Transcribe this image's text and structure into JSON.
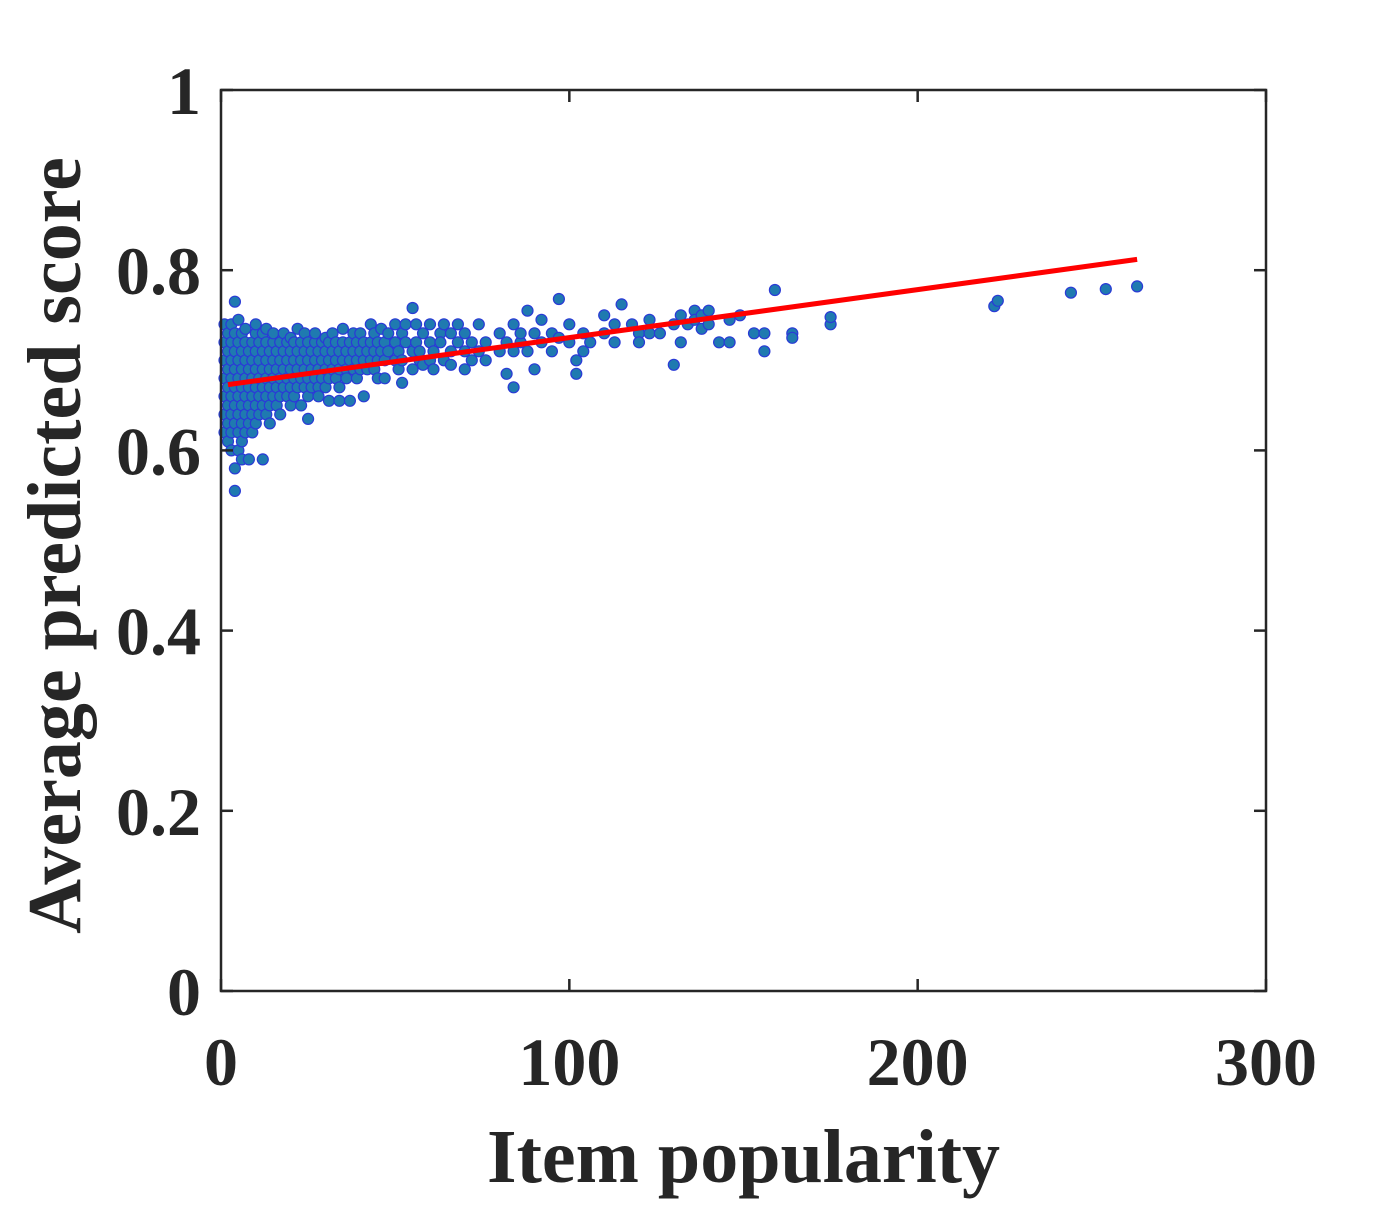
{
  "chart_data": {
    "type": "scatter",
    "title": "",
    "xlabel": "Item popularity",
    "ylabel": "Average predicted score",
    "xlim": [
      0,
      300
    ],
    "ylim": [
      0,
      1
    ],
    "xticks": [
      0,
      100,
      200,
      300
    ],
    "xtick_labels": [
      "0",
      "100",
      "200",
      "300"
    ],
    "yticks": [
      0,
      0.2,
      0.4,
      0.6,
      0.8,
      1
    ],
    "ytick_labels": [
      "0",
      "0.2",
      "0.4",
      "0.6",
      "0.8",
      "1"
    ],
    "grid": false,
    "legend": "none",
    "colors": {
      "marker_fill": "#1f7ab0",
      "marker_edge": "#2a3ad6",
      "fit_line": "#ff0000",
      "axes": "#262626"
    },
    "series": [
      {
        "kind": "points",
        "points": [
          [
            1,
            0.7
          ],
          [
            1,
            0.66
          ],
          [
            1,
            0.64
          ],
          [
            1,
            0.62
          ],
          [
            1,
            0.72
          ],
          [
            1,
            0.68
          ],
          [
            1,
            0.74
          ],
          [
            2,
            0.69
          ],
          [
            2,
            0.67
          ],
          [
            2,
            0.65
          ],
          [
            2,
            0.63
          ],
          [
            2,
            0.61
          ],
          [
            2,
            0.71
          ],
          [
            2,
            0.73
          ],
          [
            3,
            0.7
          ],
          [
            3,
            0.68
          ],
          [
            3,
            0.66
          ],
          [
            3,
            0.64
          ],
          [
            3,
            0.6
          ],
          [
            3,
            0.72
          ],
          [
            3,
            0.74
          ],
          [
            3,
            0.62
          ],
          [
            4,
            0.69
          ],
          [
            4,
            0.67
          ],
          [
            4,
            0.65
          ],
          [
            4,
            0.63
          ],
          [
            4,
            0.71
          ],
          [
            4,
            0.73
          ],
          [
            4,
            0.58
          ],
          [
            4,
            0.555
          ],
          [
            4,
            0.765
          ],
          [
            5,
            0.7
          ],
          [
            5,
            0.68
          ],
          [
            5,
            0.66
          ],
          [
            5,
            0.64
          ],
          [
            5,
            0.62
          ],
          [
            5,
            0.72
          ],
          [
            5,
            0.6
          ],
          [
            5,
            0.745
          ],
          [
            6,
            0.69
          ],
          [
            6,
            0.67
          ],
          [
            6,
            0.65
          ],
          [
            6,
            0.63
          ],
          [
            6,
            0.71
          ],
          [
            6,
            0.73
          ],
          [
            6,
            0.59
          ],
          [
            6,
            0.61
          ],
          [
            7,
            0.7
          ],
          [
            7,
            0.68
          ],
          [
            7,
            0.66
          ],
          [
            7,
            0.64
          ],
          [
            7,
            0.72
          ],
          [
            7,
            0.62
          ],
          [
            7,
            0.735
          ],
          [
            8,
            0.69
          ],
          [
            8,
            0.67
          ],
          [
            8,
            0.65
          ],
          [
            8,
            0.71
          ],
          [
            8,
            0.63
          ],
          [
            8,
            0.59
          ],
          [
            9,
            0.7
          ],
          [
            9,
            0.68
          ],
          [
            9,
            0.66
          ],
          [
            9,
            0.72
          ],
          [
            9,
            0.64
          ],
          [
            9,
            0.62
          ],
          [
            10,
            0.69
          ],
          [
            10,
            0.67
          ],
          [
            10,
            0.71
          ],
          [
            10,
            0.65
          ],
          [
            10,
            0.73
          ],
          [
            10,
            0.63
          ],
          [
            10,
            0.74
          ],
          [
            11,
            0.7
          ],
          [
            11,
            0.68
          ],
          [
            11,
            0.66
          ],
          [
            11,
            0.72
          ],
          [
            11,
            0.64
          ],
          [
            12,
            0.69
          ],
          [
            12,
            0.67
          ],
          [
            12,
            0.71
          ],
          [
            12,
            0.65
          ],
          [
            12,
            0.73
          ],
          [
            12,
            0.59
          ],
          [
            13,
            0.7
          ],
          [
            13,
            0.68
          ],
          [
            13,
            0.66
          ],
          [
            13,
            0.72
          ],
          [
            13,
            0.64
          ],
          [
            13,
            0.735
          ],
          [
            14,
            0.69
          ],
          [
            14,
            0.67
          ],
          [
            14,
            0.71
          ],
          [
            14,
            0.65
          ],
          [
            14,
            0.63
          ],
          [
            15,
            0.7
          ],
          [
            15,
            0.68
          ],
          [
            15,
            0.72
          ],
          [
            15,
            0.66
          ],
          [
            15,
            0.73
          ],
          [
            16,
            0.69
          ],
          [
            16,
            0.67
          ],
          [
            16,
            0.71
          ],
          [
            16,
            0.65
          ],
          [
            17,
            0.7
          ],
          [
            17,
            0.68
          ],
          [
            17,
            0.72
          ],
          [
            17,
            0.66
          ],
          [
            17,
            0.64
          ],
          [
            18,
            0.69
          ],
          [
            18,
            0.71
          ],
          [
            18,
            0.67
          ],
          [
            18,
            0.73
          ],
          [
            19,
            0.7
          ],
          [
            19,
            0.68
          ],
          [
            19,
            0.72
          ],
          [
            19,
            0.66
          ],
          [
            20,
            0.69
          ],
          [
            20,
            0.71
          ],
          [
            20,
            0.67
          ],
          [
            20,
            0.65
          ],
          [
            20,
            0.725
          ],
          [
            21,
            0.7
          ],
          [
            21,
            0.68
          ],
          [
            21,
            0.72
          ],
          [
            21,
            0.66
          ],
          [
            22,
            0.69
          ],
          [
            22,
            0.71
          ],
          [
            22,
            0.67
          ],
          [
            22,
            0.735
          ],
          [
            23,
            0.7
          ],
          [
            23,
            0.68
          ],
          [
            23,
            0.72
          ],
          [
            23,
            0.65
          ],
          [
            24,
            0.69
          ],
          [
            24,
            0.71
          ],
          [
            24,
            0.67
          ],
          [
            24,
            0.73
          ],
          [
            25,
            0.7
          ],
          [
            25,
            0.68
          ],
          [
            25,
            0.72
          ],
          [
            25,
            0.66
          ],
          [
            25,
            0.635
          ],
          [
            26,
            0.69
          ],
          [
            26,
            0.71
          ],
          [
            26,
            0.67
          ],
          [
            27,
            0.7
          ],
          [
            27,
            0.72
          ],
          [
            27,
            0.68
          ],
          [
            27,
            0.73
          ],
          [
            28,
            0.69
          ],
          [
            28,
            0.71
          ],
          [
            28,
            0.67
          ],
          [
            28,
            0.66
          ],
          [
            29,
            0.7
          ],
          [
            29,
            0.72
          ],
          [
            29,
            0.68
          ],
          [
            30,
            0.69
          ],
          [
            30,
            0.71
          ],
          [
            30,
            0.67
          ],
          [
            30,
            0.725
          ],
          [
            31,
            0.7
          ],
          [
            31,
            0.72
          ],
          [
            31,
            0.68
          ],
          [
            31,
            0.655
          ],
          [
            32,
            0.69
          ],
          [
            32,
            0.71
          ],
          [
            32,
            0.73
          ],
          [
            33,
            0.7
          ],
          [
            33,
            0.72
          ],
          [
            33,
            0.68
          ],
          [
            34,
            0.69
          ],
          [
            34,
            0.71
          ],
          [
            34,
            0.67
          ],
          [
            34,
            0.655
          ],
          [
            35,
            0.7
          ],
          [
            35,
            0.72
          ],
          [
            35,
            0.735
          ],
          [
            36,
            0.69
          ],
          [
            36,
            0.71
          ],
          [
            36,
            0.68
          ],
          [
            37,
            0.7
          ],
          [
            37,
            0.72
          ],
          [
            37,
            0.655
          ],
          [
            38,
            0.71
          ],
          [
            38,
            0.69
          ],
          [
            38,
            0.73
          ],
          [
            39,
            0.7
          ],
          [
            39,
            0.72
          ],
          [
            39,
            0.68
          ],
          [
            40,
            0.71
          ],
          [
            40,
            0.69
          ],
          [
            40,
            0.73
          ],
          [
            41,
            0.7
          ],
          [
            41,
            0.72
          ],
          [
            41,
            0.66
          ],
          [
            42,
            0.71
          ],
          [
            42,
            0.69
          ],
          [
            43,
            0.72
          ],
          [
            43,
            0.7
          ],
          [
            43,
            0.74
          ],
          [
            44,
            0.71
          ],
          [
            44,
            0.69
          ],
          [
            44,
            0.73
          ],
          [
            45,
            0.7
          ],
          [
            45,
            0.72
          ],
          [
            45,
            0.68
          ],
          [
            46,
            0.71
          ],
          [
            46,
            0.735
          ],
          [
            47,
            0.72
          ],
          [
            47,
            0.7
          ],
          [
            47,
            0.68
          ],
          [
            48,
            0.71
          ],
          [
            48,
            0.73
          ],
          [
            50,
            0.7
          ],
          [
            50,
            0.72
          ],
          [
            50,
            0.74
          ],
          [
            51,
            0.71
          ],
          [
            51,
            0.69
          ],
          [
            52,
            0.73
          ],
          [
            52,
            0.7
          ],
          [
            52,
            0.675
          ],
          [
            53,
            0.72
          ],
          [
            53,
            0.74
          ],
          [
            55,
            0.71
          ],
          [
            55,
            0.69
          ],
          [
            55,
            0.758
          ],
          [
            56,
            0.72
          ],
          [
            56,
            0.74
          ],
          [
            57,
            0.7
          ],
          [
            57,
            0.71
          ],
          [
            58,
            0.73
          ],
          [
            58,
            0.695
          ],
          [
            60,
            0.72
          ],
          [
            60,
            0.74
          ],
          [
            60,
            0.7
          ],
          [
            61,
            0.71
          ],
          [
            61,
            0.69
          ],
          [
            63,
            0.73
          ],
          [
            63,
            0.72
          ],
          [
            64,
            0.7
          ],
          [
            64,
            0.74
          ],
          [
            66,
            0.71
          ],
          [
            66,
            0.73
          ],
          [
            66,
            0.695
          ],
          [
            68,
            0.72
          ],
          [
            68,
            0.74
          ],
          [
            70,
            0.71
          ],
          [
            70,
            0.73
          ],
          [
            70,
            0.69
          ],
          [
            72,
            0.72
          ],
          [
            72,
            0.7
          ],
          [
            74,
            0.74
          ],
          [
            74,
            0.71
          ],
          [
            76,
            0.72
          ],
          [
            76,
            0.7
          ],
          [
            80,
            0.73
          ],
          [
            80,
            0.71
          ],
          [
            82,
            0.72
          ],
          [
            82,
            0.685
          ],
          [
            84,
            0.74
          ],
          [
            84,
            0.71
          ],
          [
            84,
            0.67
          ],
          [
            86,
            0.72
          ],
          [
            86,
            0.73
          ],
          [
            88,
            0.755
          ],
          [
            88,
            0.71
          ],
          [
            90,
            0.73
          ],
          [
            90,
            0.69
          ],
          [
            92,
            0.72
          ],
          [
            92,
            0.745
          ],
          [
            95,
            0.73
          ],
          [
            95,
            0.71
          ],
          [
            97,
            0.768
          ],
          [
            97,
            0.725
          ],
          [
            100,
            0.72
          ],
          [
            100,
            0.74
          ],
          [
            102,
            0.7
          ],
          [
            102,
            0.685
          ],
          [
            104,
            0.73
          ],
          [
            104,
            0.71
          ],
          [
            106,
            0.72
          ],
          [
            110,
            0.75
          ],
          [
            110,
            0.73
          ],
          [
            113,
            0.74
          ],
          [
            113,
            0.72
          ],
          [
            115,
            0.762
          ],
          [
            118,
            0.74
          ],
          [
            120,
            0.73
          ],
          [
            120,
            0.72
          ],
          [
            123,
            0.745
          ],
          [
            123,
            0.73
          ],
          [
            126,
            0.73
          ],
          [
            130,
            0.695
          ],
          [
            130,
            0.74
          ],
          [
            132,
            0.75
          ],
          [
            132,
            0.72
          ],
          [
            134,
            0.74
          ],
          [
            136,
            0.755
          ],
          [
            136,
            0.745
          ],
          [
            138,
            0.75
          ],
          [
            138,
            0.735
          ],
          [
            140,
            0.74
          ],
          [
            140,
            0.755
          ],
          [
            143,
            0.72
          ],
          [
            146,
            0.745
          ],
          [
            146,
            0.72
          ],
          [
            149,
            0.75
          ],
          [
            153,
            0.73
          ],
          [
            156,
            0.73
          ],
          [
            156,
            0.71
          ],
          [
            159,
            0.778
          ],
          [
            164,
            0.73
          ],
          [
            164,
            0.725
          ],
          [
            175,
            0.74
          ],
          [
            175,
            0.748
          ],
          [
            222,
            0.76
          ],
          [
            223,
            0.766
          ],
          [
            244,
            0.775
          ],
          [
            254,
            0.779
          ],
          [
            263,
            0.782
          ]
        ]
      },
      {
        "kind": "fit-line",
        "points": [
          [
            2,
            0.673
          ],
          [
            263,
            0.812
          ]
        ]
      }
    ]
  }
}
